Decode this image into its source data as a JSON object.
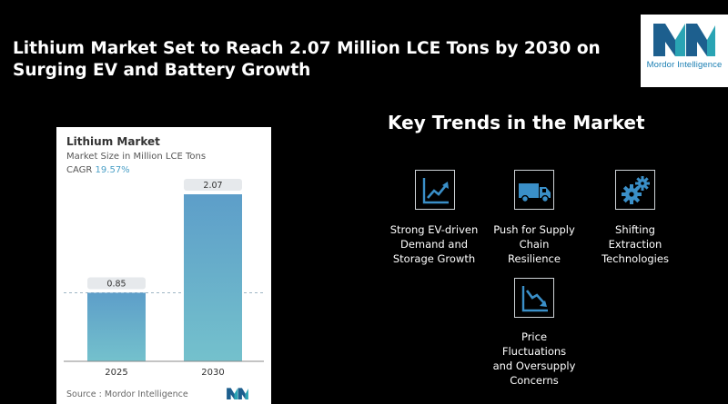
{
  "header": {
    "title": "Lithium Market Set to Reach 2.07 Million LCE Tons by 2030 on Surging EV and Battery Growth"
  },
  "logo": {
    "text": "Mordor Intelligence"
  },
  "colors": {
    "bar_top": "#5d9ec9",
    "bar_bottom": "#74c1cc",
    "accent": "#4a9fc6",
    "background": "#000000"
  },
  "chart_panel": {
    "title": "Lithium Market",
    "subtitle": "Market Size in Million LCE Tons",
    "cagr_label": "CAGR",
    "cagr_value": "19.57%",
    "source": "Source :  Mordor Intelligence"
  },
  "chart_data": {
    "type": "bar",
    "categories": [
      "2025",
      "2030"
    ],
    "values": [
      0.85,
      2.07
    ],
    "data_labels": [
      "0.85",
      "2.07"
    ],
    "title": "Lithium Market",
    "ylabel": "Market Size in Million LCE Tons",
    "ylim": [
      0,
      2.07
    ],
    "grid": false,
    "reference_line": "dashed horizontal line at the 2025 value"
  },
  "trends": {
    "title": "Key Trends in the Market",
    "items": [
      {
        "label": "Strong EV-driven\nDemand and\nStorage Growth",
        "icon": "growth-chart-icon"
      },
      {
        "label": "Push for Supply\nChain\nResilience",
        "icon": "truck-icon"
      },
      {
        "label": "Shifting\nExtraction\nTechnologies",
        "icon": "gears-icon"
      },
      {
        "label": "Price\nFluctuations\nand Oversupply\nConcerns",
        "icon": "decline-chart-icon"
      }
    ]
  }
}
